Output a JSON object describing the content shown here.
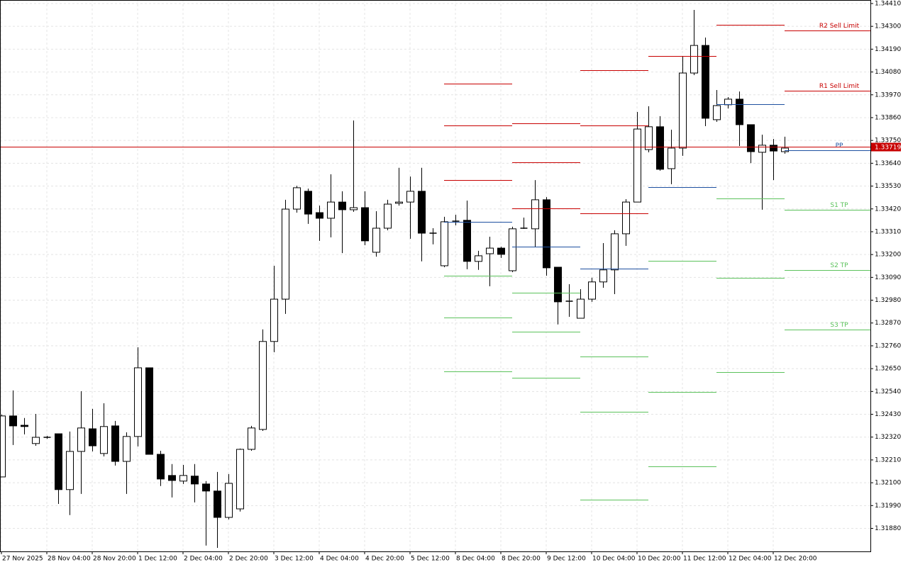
{
  "chart_data": {
    "type": "candlestick",
    "categories": [
      "27 Nov 2025",
      null,
      null,
      null,
      "28 Nov 04:00",
      null,
      null,
      null,
      "28 Nov 20:00",
      null,
      null,
      null,
      "1 Dec 12:00",
      null,
      null,
      null,
      "2 Dec 04:00",
      null,
      null,
      null,
      "2 Dec 20:00",
      null,
      null,
      null,
      "3 Dec 12:00",
      null,
      null,
      null,
      "4 Dec 04:00",
      null,
      null,
      null,
      "4 Dec 20:00",
      null,
      null,
      null,
      "5 Dec 12:00",
      null,
      null,
      null,
      "8 Dec 04:00",
      null,
      null,
      null,
      "8 Dec 20:00",
      null,
      null,
      null,
      "9 Dec 12:00",
      null,
      null,
      null,
      "10 Dec 04:00",
      null,
      null,
      null,
      "10 Dec 20:00",
      null,
      null,
      null,
      "11 Dec 12:00",
      null,
      null,
      null,
      "12 Dec 04:00",
      null,
      null,
      null,
      "12 Dec 20:00",
      null
    ],
    "open": [
      1.32128,
      1.32422,
      1.32377,
      1.32289,
      1.32319,
      1.32336,
      1.32067,
      1.32251,
      1.3236,
      1.32241,
      1.32374,
      1.32203,
      1.32323,
      1.32654,
      1.32237,
      1.32135,
      1.32108,
      1.32132,
      1.32094,
      1.3206,
      1.31933,
      1.31974,
      1.32261,
      1.32357,
      1.32781,
      1.32985,
      1.33419,
      1.33505,
      1.33402,
      1.33375,
      1.33453,
      1.33416,
      1.33426,
      1.33211,
      1.33327,
      1.33447,
      1.33453,
      1.33505,
      1.33303,
      1.33146,
      1.33361,
      1.33365,
      1.33167,
      1.33204,
      1.33231,
      1.33122,
      1.33327,
      1.33324,
      1.33464,
      1.33139,
      1.32975,
      1.32893,
      1.32985,
      1.33068,
      1.33126,
      1.333,
      1.33453,
      1.33706,
      1.33816,
      1.33614,
      1.33713,
      1.34075,
      1.34208,
      1.3385,
      1.33922,
      1.33949,
      1.33826,
      1.33693,
      1.33727,
      1.33696
    ],
    "high": [
      1.32429,
      1.32545,
      1.32412,
      1.32432,
      1.32326,
      1.32336,
      1.32347,
      1.32541,
      1.32456,
      1.32483,
      1.32398,
      1.32343,
      1.32753,
      1.32654,
      1.32254,
      1.3219,
      1.32186,
      1.3219,
      1.32108,
      1.32152,
      1.32142,
      1.32265,
      1.32374,
      1.32839,
      1.33146,
      1.33464,
      1.33532,
      1.33518,
      1.33436,
      1.33587,
      1.33505,
      1.33846,
      1.33505,
      1.33409,
      1.33464,
      1.33618,
      1.33576,
      1.33618,
      1.33327,
      1.33382,
      1.33392,
      1.3346,
      1.33218,
      1.33286,
      1.33238,
      1.33334,
      1.33378,
      1.33559,
      1.33477,
      1.33139,
      1.33057,
      1.33033,
      1.33088,
      1.33255,
      1.33317,
      1.33467,
      1.33887,
      1.33915,
      1.33867,
      1.33802,
      1.34154,
      1.34379,
      1.34246,
      1.33993,
      1.33959,
      1.33986,
      1.33826,
      1.33778,
      1.33757,
      1.33768
    ],
    "low": [
      1.32128,
      1.32282,
      1.32333,
      1.32278,
      1.32312,
      1.31998,
      1.31944,
      1.32046,
      1.32251,
      1.32227,
      1.32183,
      1.32046,
      1.32275,
      1.32237,
      1.32084,
      1.32029,
      1.32094,
      1.32005,
      1.31797,
      1.31786,
      1.31923,
      1.31961,
      1.32254,
      1.3235,
      1.32729,
      1.32914,
      1.33402,
      1.33348,
      1.33266,
      1.33283,
      1.33207,
      1.33406,
      1.33245,
      1.3319,
      1.33317,
      1.33436,
      1.33276,
      1.33167,
      1.33249,
      1.33139,
      1.33341,
      1.33129,
      1.33126,
      1.33047,
      1.33184,
      1.33115,
      1.33324,
      1.33238,
      1.33098,
      1.32863,
      1.329,
      1.32893,
      1.32972,
      1.3304,
      1.33009,
      1.33242,
      1.33453,
      1.33693,
      1.33604,
      1.33539,
      1.33676,
      1.34065,
      1.33819,
      1.3384,
      1.33904,
      1.33723,
      1.33641,
      1.33416,
      1.33559,
      1.33686
    ],
    "close": [
      1.32422,
      1.32374,
      1.32371,
      1.32319,
      1.32319,
      1.32067,
      1.32251,
      1.32364,
      1.32278,
      1.32371,
      1.32203,
      1.32323,
      1.32654,
      1.32237,
      1.32118,
      1.32111,
      1.32135,
      1.32094,
      1.3206,
      1.31933,
      1.32097,
      1.32261,
      1.32364,
      1.32781,
      1.32985,
      1.33419,
      1.33522,
      1.33395,
      1.33375,
      1.33453,
      1.33416,
      1.33426,
      1.33266,
      1.33327,
      1.33443,
      1.33453,
      1.33505,
      1.33303,
      1.33303,
      1.33358,
      1.33361,
      1.33167,
      1.33194,
      1.33231,
      1.33201,
      1.33324,
      1.33327,
      1.33464,
      1.33136,
      1.32972,
      1.32975,
      1.32985,
      1.33068,
      1.33126,
      1.333,
      1.33453,
      1.33805,
      1.33816,
      1.33611,
      1.33713,
      1.34075,
      1.34208,
      1.33857,
      1.33918,
      1.33949,
      1.33826,
      1.33696,
      1.33727,
      1.33699,
      1.33713
    ],
    "bull_color": "#ffffff",
    "bear_color": "#000000",
    "grid": true,
    "ylim": [
      1.31769,
      1.34427
    ],
    "yticks": [
      {
        "value": 1.3441,
        "label": "1.34410"
      },
      {
        "value": 1.343,
        "label": "1.34300"
      },
      {
        "value": 1.3419,
        "label": "1.34190"
      },
      {
        "value": 1.3408,
        "label": "1.34080"
      },
      {
        "value": 1.3397,
        "label": "1.33970"
      },
      {
        "value": 1.3386,
        "label": "1.33860"
      },
      {
        "value": 1.3375,
        "label": "1.33750"
      },
      {
        "value": 1.3364,
        "label": "1.33640"
      },
      {
        "value": 1.3353,
        "label": "1.33530"
      },
      {
        "value": 1.3342,
        "label": "1.33420"
      },
      {
        "value": 1.3331,
        "label": "1.33310"
      },
      {
        "value": 1.332,
        "label": "1.33200"
      },
      {
        "value": 1.3309,
        "label": "1.33090"
      },
      {
        "value": 1.3298,
        "label": "1.32980"
      },
      {
        "value": 1.3287,
        "label": "1.32870"
      },
      {
        "value": 1.3276,
        "label": "1.32760"
      },
      {
        "value": 1.3265,
        "label": "1.32650"
      },
      {
        "value": 1.3254,
        "label": "1.32540"
      },
      {
        "value": 1.3243,
        "label": "1.32430"
      },
      {
        "value": 1.3232,
        "label": "1.32320"
      },
      {
        "value": 1.3221,
        "label": "1.32210"
      },
      {
        "value": 1.321,
        "label": "1.32100"
      },
      {
        "value": 1.3199,
        "label": "1.31990"
      },
      {
        "value": 1.3188,
        "label": "1.31880"
      }
    ],
    "last_price": {
      "value": 1.33719,
      "label": "1.33719",
      "color": "#c80000"
    },
    "levels": [
      {
        "start": 39,
        "end": 45,
        "color": "#c80000",
        "value": 1.34024
      },
      {
        "start": 39,
        "end": 45,
        "color": "#c80000",
        "value": 1.33822
      },
      {
        "start": 39,
        "end": 45,
        "color": "#c80000",
        "value": 1.33559
      },
      {
        "start": 39,
        "end": 45,
        "color": "#1e50a0",
        "value": 1.33358
      },
      {
        "start": 39,
        "end": 45,
        "color": "#5cc25c",
        "value": 1.33098
      },
      {
        "start": 39,
        "end": 45,
        "color": "#5cc25c",
        "value": 1.32897
      },
      {
        "start": 39,
        "end": 45,
        "color": "#5cc25c",
        "value": 1.32637
      },
      {
        "start": 45,
        "end": 51,
        "color": "#c80000",
        "value": 1.33833
      },
      {
        "start": 45,
        "end": 51,
        "color": "#c80000",
        "value": 1.33645
      },
      {
        "start": 45,
        "end": 51,
        "color": "#c80000",
        "value": 1.33423
      },
      {
        "start": 45,
        "end": 51,
        "color": "#1e50a0",
        "value": 1.33238
      },
      {
        "start": 45,
        "end": 51,
        "color": "#5cc25c",
        "value": 1.33016
      },
      {
        "start": 45,
        "end": 51,
        "color": "#5cc25c",
        "value": 1.32828
      },
      {
        "start": 45,
        "end": 51,
        "color": "#5cc25c",
        "value": 1.32606
      },
      {
        "start": 51,
        "end": 57,
        "color": "#c80000",
        "value": 1.34089
      },
      {
        "start": 51,
        "end": 57,
        "color": "#c80000",
        "value": 1.33822
      },
      {
        "start": 51,
        "end": 57,
        "color": "#c80000",
        "value": 1.33399
      },
      {
        "start": 51,
        "end": 57,
        "color": "#1e50a0",
        "value": 1.33132
      },
      {
        "start": 51,
        "end": 57,
        "color": "#5cc25c",
        "value": 1.32709
      },
      {
        "start": 51,
        "end": 57,
        "color": "#5cc25c",
        "value": 1.32442
      },
      {
        "start": 51,
        "end": 57,
        "color": "#5cc25c",
        "value": 1.32019
      },
      {
        "start": 57,
        "end": 63,
        "color": "#c80000",
        "value": 1.34157
      },
      {
        "start": 57,
        "end": 63,
        "color": "#1e50a0",
        "value": 1.33525
      },
      {
        "start": 57,
        "end": 63,
        "color": "#5cc25c",
        "value": 1.3317
      },
      {
        "start": 57,
        "end": 63,
        "color": "#5cc25c",
        "value": 1.32538
      },
      {
        "start": 57,
        "end": 63,
        "color": "#5cc25c",
        "value": 1.32179
      },
      {
        "start": 63,
        "end": 69,
        "color": "#c80000",
        "value": 1.34308
      },
      {
        "start": 63,
        "end": 69,
        "color": "#1e50a0",
        "value": 1.33925
      },
      {
        "start": 63,
        "end": 69,
        "color": "#5cc25c",
        "value": 1.33471
      },
      {
        "start": 63,
        "end": 69,
        "color": "#5cc25c",
        "value": 1.33088
      },
      {
        "start": 63,
        "end": 69,
        "color": "#5cc25c",
        "value": 1.32634
      },
      {
        "start": 69,
        "color": "#c80000",
        "value": 1.3428,
        "label": "R2 Sell Limit"
      },
      {
        "start": 69,
        "color": "#c80000",
        "value": 1.3399,
        "label": "R1 Sell Limit"
      },
      {
        "start": 69,
        "color": "#1e50a0",
        "value": 1.33703,
        "label": "PP"
      },
      {
        "start": 69,
        "color": "#5cc25c",
        "value": 1.33416,
        "label": "S1 TP"
      },
      {
        "start": 69,
        "color": "#5cc25c",
        "value": 1.33126,
        "label": "S2 TP"
      },
      {
        "start": 69,
        "color": "#5cc25c",
        "value": 1.32839,
        "label": "S3 TP"
      }
    ]
  }
}
